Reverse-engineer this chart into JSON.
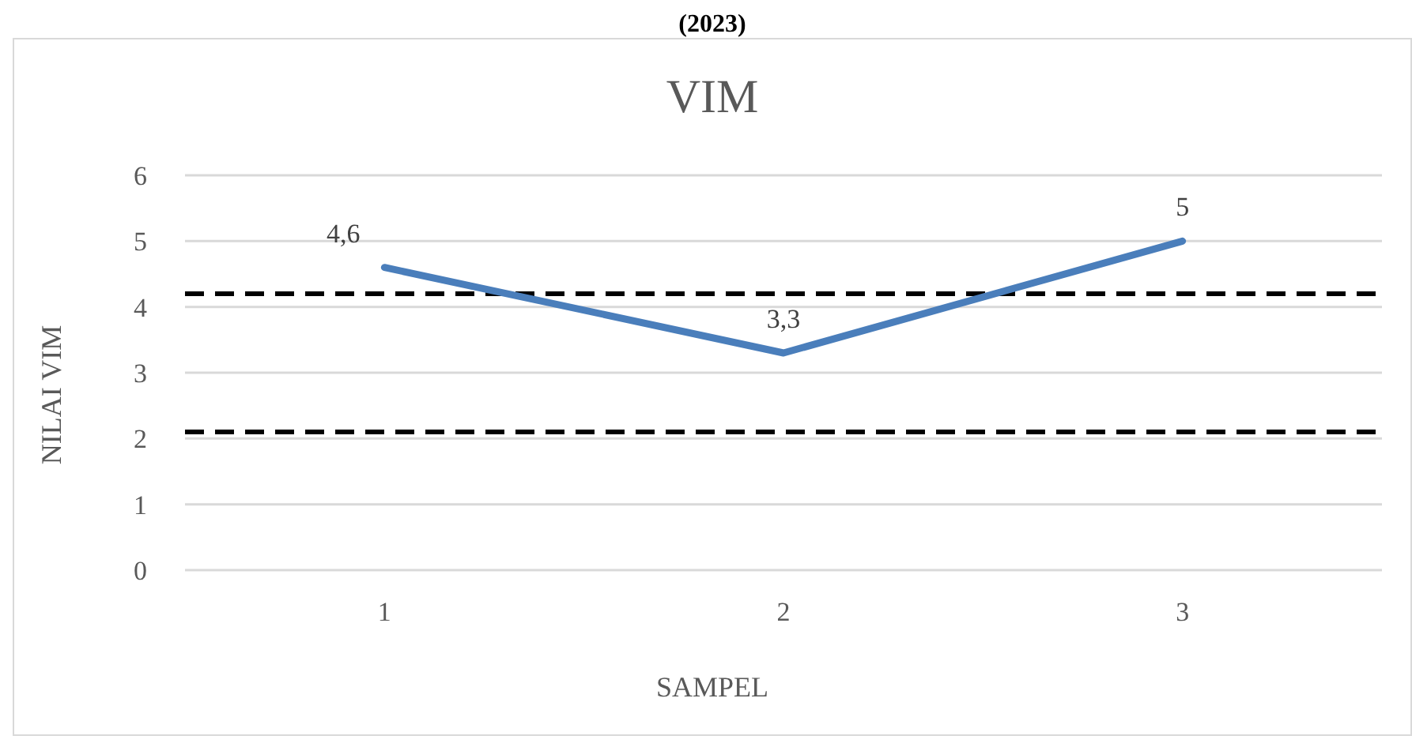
{
  "chart_data": {
    "type": "line",
    "title": "VIM",
    "xlabel": "SAMPEL",
    "ylabel": "NILAI VIM",
    "annotations": [
      "(2023)"
    ],
    "categories": [
      "1",
      "2",
      "3"
    ],
    "series": [
      {
        "color": "#4a7ebb",
        "values": [
          4.6,
          3.3,
          5
        ],
        "value_labels": [
          "4,6",
          "3,3",
          "5"
        ]
      }
    ],
    "ylim": [
      0,
      6
    ],
    "yticks": [
      0,
      1,
      2,
      3,
      4,
      5,
      6
    ],
    "grid": "y",
    "legend": false,
    "marker": "none",
    "line_style": "solid",
    "ref_lines": [
      {
        "axis": "y",
        "value": 4.2,
        "color": "#000000",
        "line_style": "dashed"
      },
      {
        "axis": "y",
        "value": 2.1,
        "color": "#000000",
        "line_style": "dashed"
      }
    ]
  }
}
